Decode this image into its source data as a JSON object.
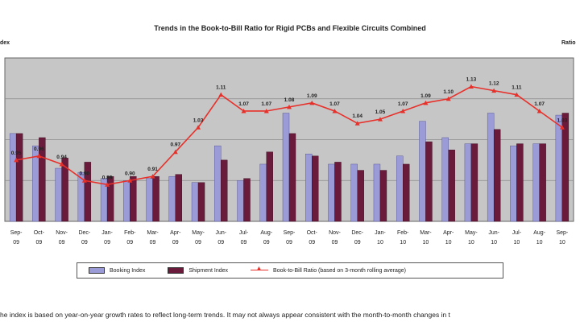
{
  "chart_data": {
    "type": "bar+line",
    "title": "Trends in the Book-to-Bill Ratio for Rigid PCBs and Flexible Circuits Combined",
    "ylabel_left": "dex",
    "ylabel_right": "Ratio",
    "categories": [
      [
        "Sep-",
        "09"
      ],
      [
        "Oct-",
        "09"
      ],
      [
        "Nov-",
        "09"
      ],
      [
        "Dec-",
        "09"
      ],
      [
        "Jan-",
        "09"
      ],
      [
        "Feb-",
        "09"
      ],
      [
        "Mar-",
        "09"
      ],
      [
        "Apr-",
        "09"
      ],
      [
        "May-",
        "09"
      ],
      [
        "Jun-",
        "09"
      ],
      [
        "Jul-",
        "09"
      ],
      [
        "Aug-",
        "09"
      ],
      [
        "Sep-",
        "09"
      ],
      [
        "Oct-",
        "09"
      ],
      [
        "Nov-",
        "09"
      ],
      [
        "Dec-",
        "09"
      ],
      [
        "Jan-",
        "10"
      ],
      [
        "Feb-",
        "10"
      ],
      [
        "Mar-",
        "10"
      ],
      [
        "Apr-",
        "10"
      ],
      [
        "May-",
        "10"
      ],
      [
        "Jun-",
        "10"
      ],
      [
        "Jul-",
        "10"
      ],
      [
        "Aug-",
        "10"
      ],
      [
        "Sep-",
        "10"
      ]
    ],
    "series": [
      {
        "name": "Booking Index",
        "type": "bar",
        "color": "#9b9bd8",
        "values": [
          0.63,
          0.57,
          0.46,
          0.44,
          0.41,
          0.4,
          0.41,
          0.42,
          0.39,
          0.57,
          0.4,
          0.48,
          0.73,
          0.53,
          0.48,
          0.48,
          0.48,
          0.52,
          0.69,
          0.61,
          0.58,
          0.73,
          0.57,
          0.58,
          0.72
        ]
      },
      {
        "name": "Shipment Index",
        "type": "bar",
        "color": "#6a1a3a",
        "values": [
          0.63,
          0.61,
          0.51,
          0.49,
          0.42,
          0.42,
          0.42,
          0.43,
          0.39,
          0.5,
          0.41,
          0.54,
          0.63,
          0.52,
          0.49,
          0.45,
          0.45,
          0.48,
          0.59,
          0.55,
          0.58,
          0.65,
          0.58,
          0.58,
          0.73
        ]
      },
      {
        "name": "Book-to-Bill Ratio (based on 3-month rolling average)",
        "type": "line",
        "color": "#e8302a",
        "values": [
          0.95,
          0.96,
          0.94,
          0.9,
          0.89,
          0.9,
          0.91,
          0.97,
          1.03,
          1.11,
          1.07,
          1.07,
          1.08,
          1.09,
          1.07,
          1.04,
          1.05,
          1.07,
          1.09,
          1.1,
          1.13,
          1.12,
          1.11,
          1.07,
          1.03
        ],
        "labels": [
          "0.95",
          "0.96",
          "0.94",
          "0.90",
          "0.89",
          "0.90",
          "0.91",
          "0.97",
          "1.03",
          "1.11",
          "1.07",
          "1.07",
          "1.08",
          "1.09",
          "1.07",
          "1.04",
          "1.05",
          "1.07",
          "1.09",
          "1.10",
          "1.13",
          "1.12",
          "1.11",
          "1.07",
          "1.03"
        ]
      }
    ],
    "ylim_left": [
      0.2,
      1.0
    ],
    "ylim_right": [
      0.8,
      1.2
    ],
    "grid": true,
    "plot_background": "#c6c6c6",
    "legend_position": "bottom"
  },
  "footnote": "he index is based on year-on-year growth rates to reflect long-term trends. It may not always appear consistent with the month-to-month changes in t"
}
